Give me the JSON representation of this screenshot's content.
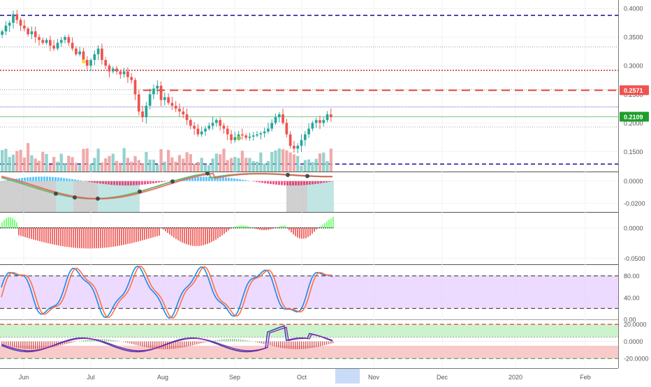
{
  "colors": {
    "up": "#26a69a",
    "down": "#ef5350",
    "bg": "#ffffff",
    "axis_text": "#555555",
    "purple_dash": "#2a1a9e",
    "red_dash": "#b71c1c",
    "green_label": "#1e9e2a",
    "red_label": "#ef5350",
    "stoch_fill": "#e6ccff",
    "macd_teal": "#b2dfdb",
    "macd_grey": "#c4c4c4"
  },
  "chart_data": [
    {
      "pane": "price",
      "type": "candlestick",
      "ylim": [
        0.115,
        0.41
      ],
      "yticks": [
        "0.4000",
        "0.3500",
        "0.3000",
        "0.2500",
        "0.2000",
        "0.1500"
      ],
      "ytick_values": [
        0.4,
        0.35,
        0.3,
        0.25,
        0.2,
        0.15
      ],
      "levels": [
        {
          "value": 0.388,
          "style": "purple-dashed"
        },
        {
          "value": 0.333,
          "style": "grey-dotted"
        },
        {
          "value": 0.292,
          "style": "red-dotted"
        },
        {
          "value": 0.258,
          "style": "grey-dotted"
        },
        {
          "value": 0.2571,
          "style": "red-dashed"
        },
        {
          "value": 0.228,
          "style": "blue-dotted"
        },
        {
          "value": 0.2109,
          "style": "green-solid"
        },
        {
          "value": 0.193,
          "style": "grey-dotted"
        },
        {
          "value": 0.128,
          "style": "purple-dashed"
        }
      ],
      "price_labels": [
        {
          "text": "0.2571",
          "value": 0.2571,
          "color": "red"
        },
        {
          "text": "0.2109",
          "value": 0.2109,
          "color": "green"
        }
      ],
      "closes": [
        0.36,
        0.37,
        0.375,
        0.39,
        0.38,
        0.37,
        0.365,
        0.355,
        0.36,
        0.35,
        0.345,
        0.34,
        0.345,
        0.335,
        0.33,
        0.34,
        0.345,
        0.35,
        0.34,
        0.33,
        0.32,
        0.325,
        0.31,
        0.3,
        0.31,
        0.32,
        0.33,
        0.31,
        0.3,
        0.29,
        0.295,
        0.29,
        0.285,
        0.29,
        0.28,
        0.275,
        0.25,
        0.22,
        0.21,
        0.23,
        0.25,
        0.26,
        0.265,
        0.24,
        0.245,
        0.235,
        0.23,
        0.225,
        0.22,
        0.215,
        0.205,
        0.195,
        0.19,
        0.18,
        0.185,
        0.19,
        0.195,
        0.2,
        0.205,
        0.195,
        0.19,
        0.18,
        0.17,
        0.175,
        0.18,
        0.178,
        0.174,
        0.176,
        0.178,
        0.18,
        0.182,
        0.185,
        0.19,
        0.2,
        0.21,
        0.215,
        0.2,
        0.18,
        0.16,
        0.155,
        0.16,
        0.17,
        0.18,
        0.19,
        0.2,
        0.205,
        0.2,
        0.205,
        0.215,
        0.21
      ]
    },
    {
      "pane": "macd_ribbon",
      "type": "line",
      "ylim": [
        -0.028,
        0.008
      ],
      "yticks": [
        "0.0000",
        "-0.0200"
      ],
      "ytick_values": [
        0.0,
        -0.02
      ]
    },
    {
      "pane": "momentum_histogram",
      "type": "bar",
      "ylim": [
        -0.06,
        0.025
      ],
      "yticks": [
        "0.0000",
        "-0.0500"
      ],
      "ytick_values": [
        0.0,
        -0.05
      ]
    },
    {
      "pane": "stochastic",
      "type": "line",
      "ylim": [
        0,
        100
      ],
      "yticks": [
        "80.00",
        "40.00",
        "0.00"
      ],
      "ytick_values": [
        80,
        40,
        0
      ],
      "band": [
        20,
        80
      ]
    },
    {
      "pane": "oscillator",
      "type": "line",
      "ylim": [
        -28,
        25
      ],
      "yticks": [
        "20.0000",
        "0.0000",
        "-20.0000"
      ],
      "ytick_values": [
        20,
        0,
        -20
      ],
      "bands": {
        "upper": [
          5,
          20
        ],
        "lower": [
          -20,
          -5
        ]
      }
    }
  ],
  "x_axis": {
    "labels": [
      "Jun",
      "Jul",
      "Aug",
      "Sep",
      "Oct",
      "Nov",
      "Dec",
      "2020",
      "Feb"
    ],
    "highlight_label": ""
  }
}
